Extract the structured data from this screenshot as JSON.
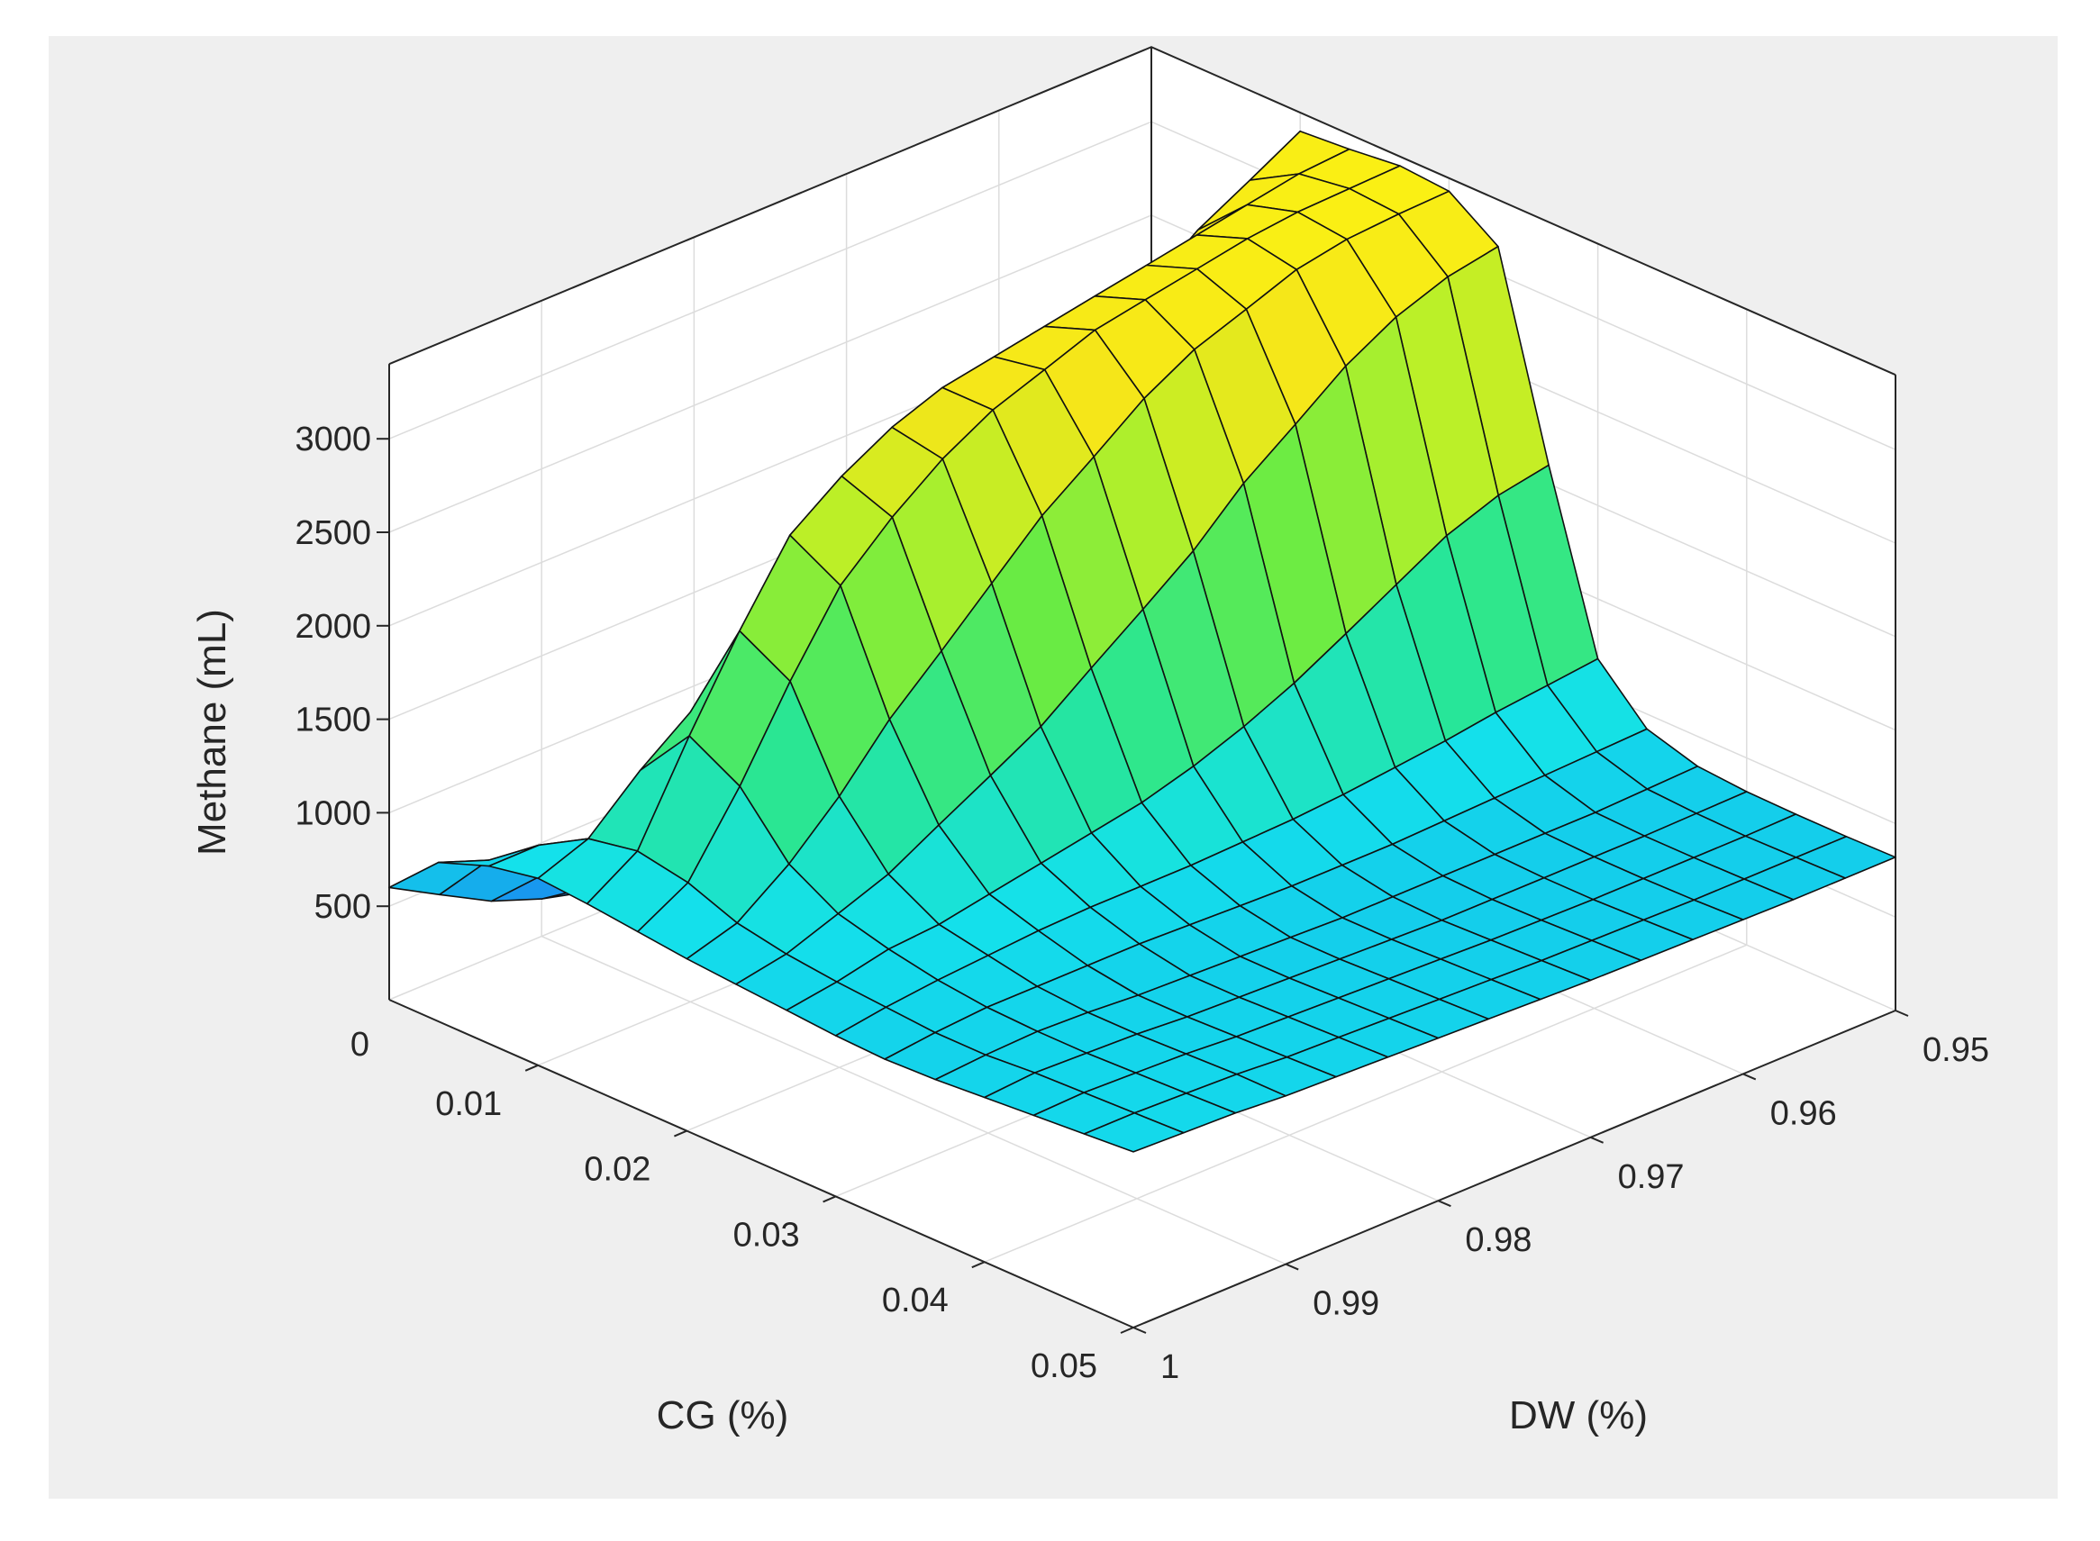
{
  "chart_data": {
    "type": "surface",
    "title": "",
    "xlabel": "CG (%)",
    "ylabel": "DW (%)",
    "zlabel": "Methane (mL)",
    "x_axis": {
      "ticks": [
        0,
        0.01,
        0.02,
        0.03,
        0.04,
        0.05
      ],
      "tick_labels": [
        "0",
        "0.01",
        "0.02",
        "0.03",
        "0.04",
        "0.05"
      ],
      "range": [
        0,
        0.05
      ]
    },
    "y_axis": {
      "ticks": [
        0.95,
        0.96,
        0.97,
        0.98,
        0.99,
        1
      ],
      "tick_labels": [
        "0.95",
        "0.96",
        "0.97",
        "0.98",
        "0.99",
        "1"
      ],
      "range": [
        0.95,
        1
      ]
    },
    "z_axis": {
      "ticks": [
        500,
        1000,
        1500,
        2000,
        2500,
        3000
      ],
      "tick_labels": [
        "500",
        "1000",
        "1500",
        "2000",
        "2500",
        "3000"
      ],
      "range": [
        0,
        3400
      ]
    },
    "grid": true,
    "colormap": "parula",
    "grid_x": [
      0,
      0.0033,
      0.0067,
      0.01,
      0.0133,
      0.0167,
      0.02,
      0.0233,
      0.0267,
      0.03,
      0.0333,
      0.0367,
      0.04,
      0.0433,
      0.0467,
      0.05
    ],
    "grid_y": [
      1.0,
      0.9967,
      0.9933,
      0.99,
      0.9867,
      0.9833,
      0.98,
      0.9767,
      0.9733,
      0.97,
      0.9667,
      0.9633,
      0.96,
      0.9567,
      0.9533,
      0.95
    ],
    "z_values": [
      [
        600,
        850,
        950,
        1000,
        980,
        950,
        920,
        900,
        880,
        860,
        850,
        860,
        880,
        900,
        920,
        940
      ],
      [
        450,
        750,
        950,
        1100,
        1150,
        1100,
        1000,
        950,
        920,
        900,
        880,
        880,
        900,
        910,
        920,
        930
      ],
      [
        300,
        550,
        850,
        1350,
        1650,
        1500,
        1200,
        1050,
        980,
        930,
        900,
        890,
        890,
        900,
        910,
        920
      ],
      [
        200,
        380,
        700,
        1550,
        2100,
        1950,
        1450,
        1150,
        1000,
        950,
        900,
        880,
        880,
        890,
        900,
        900
      ],
      [
        130,
        260,
        550,
        1750,
        2500,
        2350,
        1750,
        1300,
        1050,
        970,
        900,
        860,
        860,
        870,
        880,
        890
      ],
      [
        80,
        180,
        450,
        1900,
        2700,
        2600,
        2000,
        1450,
        1100,
        980,
        900,
        850,
        850,
        860,
        870,
        880
      ],
      [
        50,
        120,
        400,
        2050,
        2850,
        2800,
        2250,
        1600,
        1150,
        980,
        890,
        840,
        840,
        850,
        860,
        870
      ],
      [
        40,
        110,
        400,
        2150,
        2950,
        2950,
        2500,
        1800,
        1200,
        980,
        880,
        830,
        830,
        840,
        850,
        860
      ],
      [
        40,
        110,
        420,
        2200,
        3000,
        3050,
        2700,
        2000,
        1280,
        990,
        870,
        820,
        820,
        830,
        840,
        850
      ],
      [
        40,
        110,
        440,
        2300,
        3050,
        3150,
        2900,
        2200,
        1380,
        1000,
        870,
        820,
        810,
        820,
        830,
        840
      ],
      [
        40,
        110,
        440,
        2500,
        3100,
        3200,
        3050,
        2450,
        1500,
        1020,
        870,
        820,
        810,
        815,
        825,
        835
      ],
      [
        40,
        110,
        440,
        2650,
        3150,
        3250,
        3150,
        2650,
        1650,
        1050,
        880,
        820,
        810,
        810,
        820,
        830
      ],
      [
        40,
        110,
        440,
        2800,
        3200,
        3300,
        3250,
        2850,
        1800,
        1080,
        890,
        820,
        810,
        810,
        815,
        825
      ],
      [
        40,
        110,
        440,
        3000,
        3250,
        3330,
        3300,
        3000,
        1950,
        1120,
        900,
        820,
        810,
        810,
        815,
        820
      ],
      [
        40,
        110,
        440,
        3150,
        3300,
        3340,
        3320,
        3100,
        2050,
        1150,
        910,
        830,
        815,
        810,
        815,
        820
      ],
      [
        40,
        110,
        440,
        3300,
        3320,
        3350,
        3330,
        3150,
        2100,
        1180,
        920,
        840,
        820,
        815,
        815,
        820
      ]
    ]
  }
}
